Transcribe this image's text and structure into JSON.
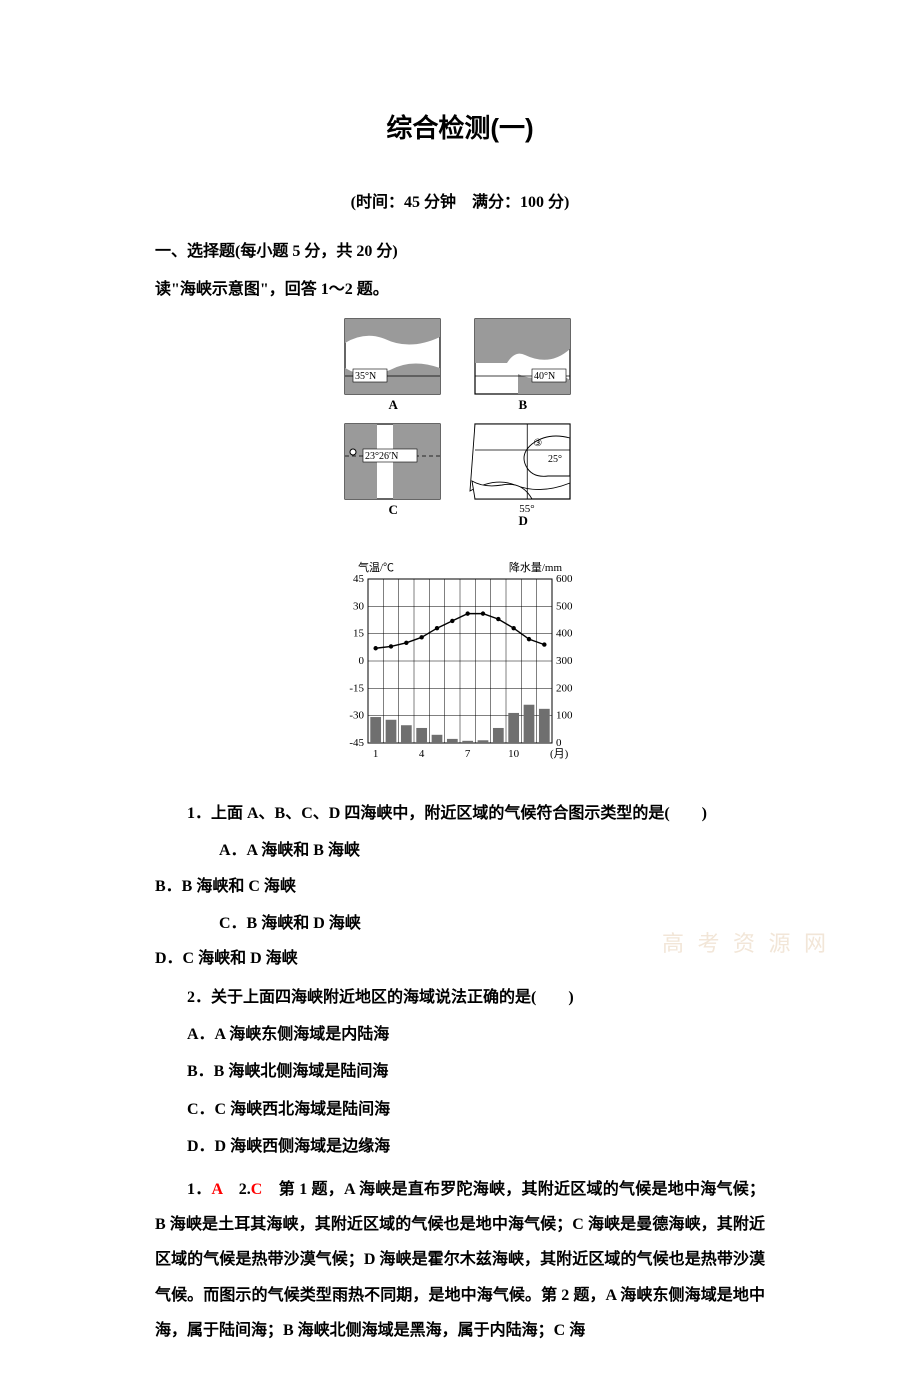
{
  "title": "综合检测(一)",
  "subtitle": "(时间：45 分钟　满分：100 分)",
  "section1_head": "一、选择题(每小题 5 分，共 20 分)",
  "stem1": "读\"海峡示意图\"，回答 1～2 题。",
  "maps": {
    "A": {
      "label": "A",
      "lat": "35°N"
    },
    "B": {
      "label": "B",
      "lat": "40°N"
    },
    "C": {
      "label": "C",
      "lat": "23°26′N"
    },
    "D": {
      "label": "D",
      "lat": "25°",
      "lon": "55°",
      "marker": "③"
    }
  },
  "chart": {
    "type": "combo-bar-line",
    "y_left_label": "气温/℃",
    "y_right_label": "降水量/mm",
    "x_label": "(月)",
    "x_ticks": [
      "1",
      "4",
      "7",
      "10"
    ],
    "y_left_ticks": [
      -45,
      -30,
      -15,
      0,
      15,
      30,
      45
    ],
    "y_right_ticks": [
      0,
      100,
      200,
      300,
      400,
      500,
      600
    ],
    "ylim_left": [
      -45,
      45
    ],
    "ylim_right": [
      0,
      600
    ],
    "temp_values": [
      7,
      8,
      10,
      13,
      18,
      22,
      26,
      26,
      23,
      18,
      12,
      9
    ],
    "precip_values": [
      95,
      85,
      65,
      55,
      30,
      15,
      8,
      10,
      55,
      110,
      140,
      125
    ],
    "bar_color": "#6f6f6f",
    "line_color": "#000000",
    "grid_color": "#000000",
    "background_color": "#ffffff",
    "font_size": 11
  },
  "q1": {
    "text": "1．上面 A、B、C、D 四海峡中，附近区域的气候符合图示类型的是(　　)",
    "optA": "A．A 海峡和 B 海峡",
    "optB": "B．B 海峡和 C 海峡",
    "optC": "C．B 海峡和 D 海峡",
    "optD": "D．C 海峡和 D 海峡"
  },
  "q2": {
    "text": "2．关于上面四海峡附近地区的海域说法正确的是(　　)",
    "optA": "A．A 海峡东侧海域是内陆海",
    "optB": "B．B 海峡北侧海域是陆间海",
    "optC": "C．C 海峡西北海域是陆间海",
    "optD": "D．D 海峡西侧海域是边缘海"
  },
  "answer": {
    "a1_label": "1．",
    "a1_key": "A",
    "a2_label": "　2.",
    "a2_key": "C",
    "explain": "　第 1 题，A 海峡是直布罗陀海峡，其附近区域的气候是地中海气候；B 海峡是土耳其海峡，其附近区域的气候也是地中海气候；C 海峡是曼德海峡，其附近区域的气候是热带沙漠气候；D 海峡是霍尔木兹海峡，其附近区域的气候也是热带沙漠气候。而图示的气候类型雨热不同期，是地中海气候。第 2 题，A 海峡东侧海域是地中海，属于陆间海；B 海峡北侧海域是黑海，属于内陆海；C 海"
  },
  "watermark": "高 考 资 源 网"
}
